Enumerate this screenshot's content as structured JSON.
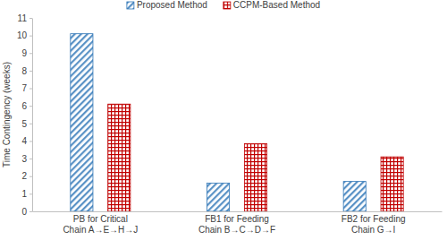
{
  "chart_data": {
    "type": "bar",
    "y_label": "Time Contingency (weeks)",
    "categories": [
      "PB for Critical Chain A→E→H→J",
      "FB1 for Feeding Chain B→C→D→F",
      "FB2 for Feeding Chain G→I"
    ],
    "series": [
      {
        "name": "Proposed Method",
        "color": "#2e75b6",
        "values": [
          10.1,
          1.6,
          1.7
        ]
      },
      {
        "name": "CCPM-Based Method",
        "color": "#c00000",
        "values": [
          6.1,
          3.85,
          3.1
        ]
      }
    ],
    "ylim": [
      0,
      11
    ],
    "yticks": [
      0,
      1,
      2,
      3,
      4,
      5,
      6,
      7,
      8,
      9,
      10,
      11
    ],
    "grid": false,
    "legend": "top"
  }
}
